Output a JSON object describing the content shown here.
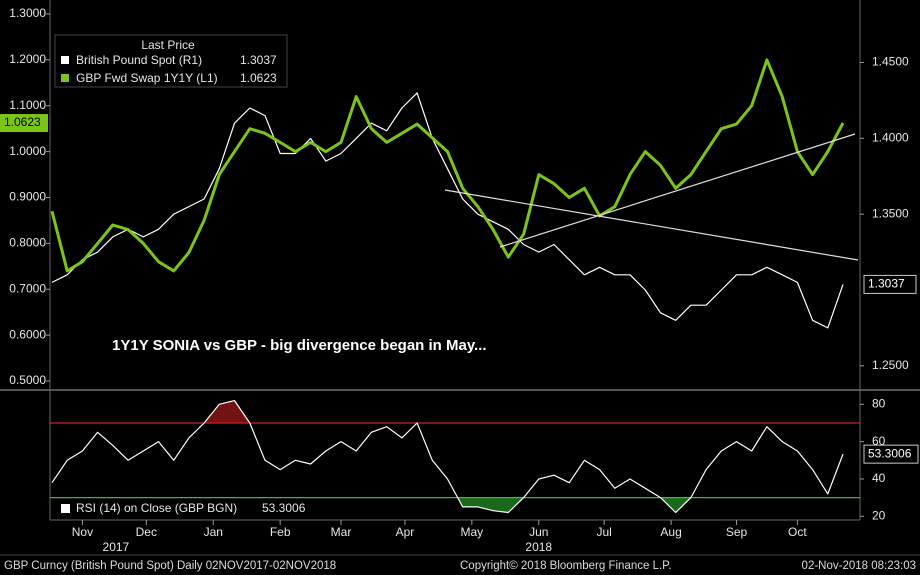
{
  "chart_data": [
    {
      "type": "line",
      "annotation": "1Y1Y SONIA vs GBP - big divergence began in May...",
      "legend_title": "Last Price",
      "ylim": [
        0.5,
        1.3
      ],
      "yticks": [
        {
          "value": 0.5,
          "label": "0.5000"
        },
        {
          "value": 0.6,
          "label": "0.6000"
        },
        {
          "value": 0.7,
          "label": "0.7000"
        },
        {
          "value": 0.8,
          "label": "0.8000"
        },
        {
          "value": 0.9,
          "label": "0.9000"
        },
        {
          "value": 1.0,
          "label": "1.0000"
        },
        {
          "value": 1.1,
          "label": "1.1000"
        },
        {
          "value": 1.2,
          "label": "1.2000"
        },
        {
          "value": 1.3,
          "label": "1.3000"
        }
      ],
      "y2lim": [
        1.24,
        1.482
      ],
      "y2ticks": [
        {
          "value": 1.25,
          "label": "1.2500"
        },
        {
          "value": 1.35,
          "label": "1.3500"
        },
        {
          "value": 1.4,
          "label": "1.4000"
        },
        {
          "value": 1.45,
          "label": "1.4500"
        }
      ],
      "series": [
        {
          "name": "British Pound Spot  (R1)",
          "color": "#ffffff",
          "axis": "y2",
          "values": [
            1.305,
            1.31,
            1.32,
            1.325,
            1.335,
            1.34,
            1.335,
            1.34,
            1.35,
            1.355,
            1.36,
            1.38,
            1.41,
            1.42,
            1.415,
            1.39,
            1.39,
            1.4,
            1.385,
            1.39,
            1.4,
            1.41,
            1.405,
            1.42,
            1.43,
            1.4,
            1.38,
            1.36,
            1.35,
            1.345,
            1.34,
            1.33,
            1.325,
            1.33,
            1.32,
            1.31,
            1.315,
            1.31,
            1.31,
            1.3,
            1.285,
            1.28,
            1.29,
            1.29,
            1.3,
            1.31,
            1.31,
            1.315,
            1.31,
            1.305,
            1.28,
            1.275,
            1.3037
          ]
        },
        {
          "name": "GBP Fwd Swap 1Y1Y  (L1)",
          "color": "#7cc516",
          "values": [
            0.87,
            0.74,
            0.76,
            0.8,
            0.84,
            0.83,
            0.8,
            0.76,
            0.74,
            0.78,
            0.85,
            0.95,
            1.0,
            1.05,
            1.04,
            1.02,
            1.0,
            1.02,
            1.0,
            1.02,
            1.12,
            1.05,
            1.02,
            1.04,
            1.06,
            1.03,
            1.0,
            0.92,
            0.88,
            0.83,
            0.77,
            0.82,
            0.95,
            0.93,
            0.9,
            0.92,
            0.86,
            0.88,
            0.95,
            1.0,
            0.97,
            0.92,
            0.95,
            1.0,
            1.05,
            1.06,
            1.1,
            1.2,
            1.12,
            1.0,
            0.95,
            1.0,
            1.0623
          ]
        }
      ]
    },
    {
      "type": "line",
      "ylim": [
        18,
        85
      ],
      "yticks": [
        20,
        40,
        60,
        80
      ],
      "hlines": [
        {
          "value": 70,
          "color": "#d02020"
        },
        {
          "value": 30,
          "color": "#30c030"
        }
      ],
      "xticks": [
        {
          "value": 2,
          "label": "Nov"
        },
        {
          "value": 6.2,
          "label": "Dec"
        },
        {
          "value": 10.6,
          "label": "Jan"
        },
        {
          "value": 15,
          "label": "Feb"
        },
        {
          "value": 19,
          "label": "Mar"
        },
        {
          "value": 23.2,
          "label": "Apr"
        },
        {
          "value": 27.6,
          "label": "May"
        },
        {
          "value": 32,
          "label": "Jun"
        },
        {
          "value": 36.3,
          "label": "Jul"
        },
        {
          "value": 40.7,
          "label": "Aug"
        },
        {
          "value": 45,
          "label": "Sep"
        },
        {
          "value": 49,
          "label": "Oct"
        }
      ],
      "year_labels": [
        {
          "value": 4.2,
          "label": "2017"
        },
        {
          "value": 32,
          "label": "2018"
        }
      ],
      "series": [
        {
          "name": "RSI (14)  on Close (GBP BGN)",
          "color": "#ffffff",
          "values": [
            38,
            50,
            55,
            65,
            58,
            50,
            55,
            60,
            50,
            62,
            70,
            80,
            82,
            70,
            50,
            45,
            50,
            48,
            55,
            60,
            55,
            65,
            68,
            62,
            70,
            50,
            40,
            25,
            25,
            23,
            22,
            30,
            40,
            42,
            38,
            50,
            45,
            35,
            40,
            35,
            30,
            22,
            30,
            45,
            55,
            60,
            55,
            68,
            60,
            55,
            45,
            32,
            53.3006
          ]
        }
      ]
    }
  ],
  "footer": {
    "left": "GBP Curncy (British Pound Spot)  Daily 02NOV2017-02NOV2018",
    "center": "Copyright© 2018 Bloomberg Finance L.P.",
    "right": "02-Nov-2018 08:23:03"
  }
}
